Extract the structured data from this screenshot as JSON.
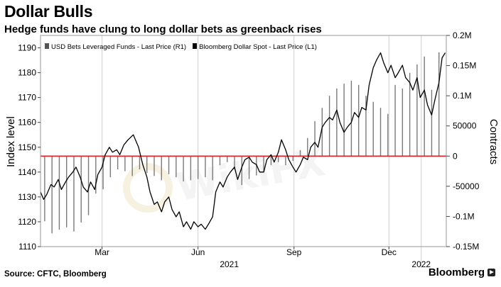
{
  "header": {
    "title": "Dollar Bulls",
    "subtitle": "Hedge funds have clung to long dollar bets as greenback rises"
  },
  "footer": {
    "source": "Source: CFTC, Bloomberg",
    "brand": "Bloomberg"
  },
  "watermark": "WikiFX",
  "colors": {
    "zero_line": "#e0202a",
    "bars": "#7a7a7a",
    "line": "#000000",
    "grid": "#cfcfcf",
    "watermark": "#f1e7c9"
  },
  "chart_data": {
    "type": "bar+line",
    "title": "Dollar Bulls",
    "subtitle": "Hedge funds have clung to long dollar bets as greenback rises",
    "left_axis": {
      "label": "Index level",
      "ylim": [
        1110,
        1195
      ],
      "ticks": [
        1110,
        1120,
        1130,
        1140,
        1150,
        1160,
        1170,
        1180,
        1190
      ]
    },
    "right_axis": {
      "label": "Contracts",
      "ylim": [
        -150000,
        200000
      ],
      "ticks": [
        -150000,
        -100000,
        -50000,
        0,
        50000,
        100000,
        150000,
        200000
      ],
      "tick_labels": [
        "-0.15M",
        "-0.1M",
        "-50000",
        "0",
        "50000",
        "0.1M",
        "0.15M",
        "0.2M"
      ]
    },
    "x_axis": {
      "type": "date",
      "range": [
        "2021-01-01",
        "2022-01-25"
      ],
      "ticks": [
        {
          "date": "2021-03-01",
          "label": "Mar"
        },
        {
          "date": "2021-06-01",
          "label": "Jun"
        },
        {
          "date": "2021-09-01",
          "label": "Sep"
        },
        {
          "date": "2021-12-01",
          "label": "Dec"
        }
      ],
      "year_labels": [
        {
          "date": "2021-07-01",
          "label": "2021"
        },
        {
          "date": "2022-01-01",
          "label": "2022"
        }
      ],
      "year_dividers": [
        "2022-01-01"
      ]
    },
    "legend": {
      "position": "top-left",
      "items": [
        "USD Bets Leveraged Funds - Last Price (R1)",
        "Bloomberg Dollar Spot - Last Price (L1)"
      ]
    },
    "grid": true,
    "series": [
      {
        "name": "USD Bets Leveraged Funds - Last Price (R1)",
        "type": "bar",
        "axis": "right",
        "points": [
          [
            "2021-01-05",
            -108000
          ],
          [
            "2021-01-12",
            -128000
          ],
          [
            "2021-01-19",
            -122000
          ],
          [
            "2021-01-26",
            -118000
          ],
          [
            "2021-02-02",
            -125000
          ],
          [
            "2021-02-09",
            -110000
          ],
          [
            "2021-02-16",
            -98000
          ],
          [
            "2021-02-23",
            -62000
          ],
          [
            "2021-03-02",
            -55000
          ],
          [
            "2021-03-09",
            -35000
          ],
          [
            "2021-03-16",
            -22000
          ],
          [
            "2021-03-23",
            -25000
          ],
          [
            "2021-03-30",
            -33000
          ],
          [
            "2021-04-06",
            -22000
          ],
          [
            "2021-04-13",
            -28000
          ],
          [
            "2021-04-20",
            -33000
          ],
          [
            "2021-04-27",
            -40000
          ],
          [
            "2021-05-04",
            -30000
          ],
          [
            "2021-05-11",
            -35000
          ],
          [
            "2021-05-18",
            -42000
          ],
          [
            "2021-05-25",
            -40000
          ],
          [
            "2021-06-01",
            -38000
          ],
          [
            "2021-06-08",
            -35000
          ],
          [
            "2021-06-15",
            -40000
          ],
          [
            "2021-06-22",
            -15000
          ],
          [
            "2021-06-29",
            -10000
          ],
          [
            "2021-07-06",
            -22000
          ],
          [
            "2021-07-13",
            -48000
          ],
          [
            "2021-07-20",
            -38000
          ],
          [
            "2021-07-27",
            -32000
          ],
          [
            "2021-08-03",
            -25000
          ],
          [
            "2021-08-10",
            -15000
          ],
          [
            "2021-08-17",
            -10000
          ],
          [
            "2021-08-24",
            -15000
          ],
          [
            "2021-08-31",
            -8000
          ],
          [
            "2021-09-07",
            10000
          ],
          [
            "2021-09-14",
            30000
          ],
          [
            "2021-09-21",
            58000
          ],
          [
            "2021-09-28",
            80000
          ],
          [
            "2021-10-05",
            100000
          ],
          [
            "2021-10-12",
            112000
          ],
          [
            "2021-10-19",
            120000
          ],
          [
            "2021-10-26",
            125000
          ],
          [
            "2021-11-02",
            118000
          ],
          [
            "2021-11-09",
            100000
          ],
          [
            "2021-11-16",
            90000
          ],
          [
            "2021-11-23",
            80000
          ],
          [
            "2021-11-30",
            70000
          ],
          [
            "2021-12-07",
            118000
          ],
          [
            "2021-12-14",
            112000
          ],
          [
            "2021-12-21",
            138000
          ],
          [
            "2021-12-28",
            152000
          ],
          [
            "2022-01-04",
            165000
          ],
          [
            "2022-01-11",
            110000
          ],
          [
            "2022-01-18",
            172000
          ]
        ]
      },
      {
        "name": "Bloomberg Dollar Spot - Last Price (L1)",
        "type": "line",
        "axis": "left",
        "points": [
          [
            "2021-01-01",
            1132
          ],
          [
            "2021-01-04",
            1129
          ],
          [
            "2021-01-07",
            1131
          ],
          [
            "2021-01-11",
            1135
          ],
          [
            "2021-01-14",
            1134
          ],
          [
            "2021-01-18",
            1137
          ],
          [
            "2021-01-21",
            1133
          ],
          [
            "2021-01-25",
            1136
          ],
          [
            "2021-01-28",
            1138
          ],
          [
            "2021-02-01",
            1140
          ],
          [
            "2021-02-04",
            1142
          ],
          [
            "2021-02-08",
            1138
          ],
          [
            "2021-02-11",
            1134
          ],
          [
            "2021-02-15",
            1132
          ],
          [
            "2021-02-18",
            1136
          ],
          [
            "2021-02-22",
            1133
          ],
          [
            "2021-02-25",
            1139
          ],
          [
            "2021-03-01",
            1142
          ],
          [
            "2021-03-04",
            1147
          ],
          [
            "2021-03-08",
            1150
          ],
          [
            "2021-03-11",
            1148
          ],
          [
            "2021-03-15",
            1149
          ],
          [
            "2021-03-18",
            1147
          ],
          [
            "2021-03-22",
            1151
          ],
          [
            "2021-03-26",
            1153
          ],
          [
            "2021-03-31",
            1155
          ],
          [
            "2021-04-05",
            1150
          ],
          [
            "2021-04-09",
            1143
          ],
          [
            "2021-04-13",
            1138
          ],
          [
            "2021-04-16",
            1132
          ],
          [
            "2021-04-20",
            1127
          ],
          [
            "2021-04-23",
            1128
          ],
          [
            "2021-04-27",
            1124
          ],
          [
            "2021-04-30",
            1128
          ],
          [
            "2021-05-04",
            1130
          ],
          [
            "2021-05-07",
            1125
          ],
          [
            "2021-05-11",
            1122
          ],
          [
            "2021-05-14",
            1124
          ],
          [
            "2021-05-18",
            1118
          ],
          [
            "2021-05-21",
            1120
          ],
          [
            "2021-05-25",
            1117
          ],
          [
            "2021-05-28",
            1120
          ],
          [
            "2021-06-01",
            1118
          ],
          [
            "2021-06-04",
            1119
          ],
          [
            "2021-06-08",
            1117
          ],
          [
            "2021-06-11",
            1119
          ],
          [
            "2021-06-15",
            1122
          ],
          [
            "2021-06-18",
            1132
          ],
          [
            "2021-06-22",
            1136
          ],
          [
            "2021-06-25",
            1134
          ],
          [
            "2021-06-29",
            1138
          ],
          [
            "2021-07-02",
            1140
          ],
          [
            "2021-07-06",
            1142
          ],
          [
            "2021-07-09",
            1137
          ],
          [
            "2021-07-13",
            1142
          ],
          [
            "2021-07-16",
            1145
          ],
          [
            "2021-07-20",
            1146
          ],
          [
            "2021-07-23",
            1144
          ],
          [
            "2021-07-27",
            1143
          ],
          [
            "2021-07-30",
            1140
          ],
          [
            "2021-08-03",
            1140
          ],
          [
            "2021-08-06",
            1145
          ],
          [
            "2021-08-10",
            1147
          ],
          [
            "2021-08-13",
            1144
          ],
          [
            "2021-08-17",
            1148
          ],
          [
            "2021-08-20",
            1153
          ],
          [
            "2021-08-24",
            1149
          ],
          [
            "2021-08-27",
            1145
          ],
          [
            "2021-08-31",
            1142
          ],
          [
            "2021-09-03",
            1140
          ],
          [
            "2021-09-07",
            1143
          ],
          [
            "2021-09-10",
            1146
          ],
          [
            "2021-09-14",
            1145
          ],
          [
            "2021-09-17",
            1150
          ],
          [
            "2021-09-21",
            1152
          ],
          [
            "2021-09-24",
            1150
          ],
          [
            "2021-09-28",
            1158
          ],
          [
            "2021-10-01",
            1160
          ],
          [
            "2021-10-05",
            1162
          ],
          [
            "2021-10-08",
            1161
          ],
          [
            "2021-10-12",
            1165
          ],
          [
            "2021-10-15",
            1160
          ],
          [
            "2021-10-19",
            1156
          ],
          [
            "2021-10-22",
            1158
          ],
          [
            "2021-10-26",
            1160
          ],
          [
            "2021-10-29",
            1164
          ],
          [
            "2021-11-02",
            1162
          ],
          [
            "2021-11-05",
            1166
          ],
          [
            "2021-11-09",
            1165
          ],
          [
            "2021-11-12",
            1175
          ],
          [
            "2021-11-16",
            1182
          ],
          [
            "2021-11-19",
            1185
          ],
          [
            "2021-11-23",
            1188
          ],
          [
            "2021-11-26",
            1184
          ],
          [
            "2021-11-30",
            1180
          ],
          [
            "2021-12-03",
            1183
          ],
          [
            "2021-12-07",
            1178
          ],
          [
            "2021-12-10",
            1180
          ],
          [
            "2021-12-14",
            1183
          ],
          [
            "2021-12-17",
            1178
          ],
          [
            "2021-12-21",
            1176
          ],
          [
            "2021-12-24",
            1173
          ],
          [
            "2021-12-28",
            1178
          ],
          [
            "2021-12-31",
            1170
          ],
          [
            "2022-01-04",
            1173
          ],
          [
            "2022-01-07",
            1167
          ],
          [
            "2022-01-11",
            1163
          ],
          [
            "2022-01-14",
            1169
          ],
          [
            "2022-01-18",
            1176
          ],
          [
            "2022-01-21",
            1186
          ],
          [
            "2022-01-24",
            1188
          ]
        ]
      }
    ]
  }
}
